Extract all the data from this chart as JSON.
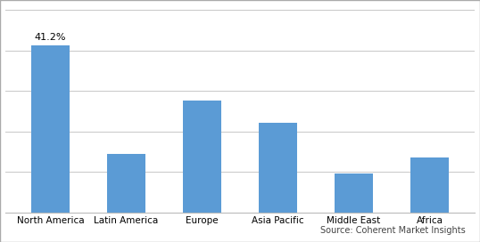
{
  "categories": [
    "North America",
    "Latin America",
    "Europe",
    "Asia Pacific",
    "Middle East",
    "Africa"
  ],
  "values": [
    41.2,
    14.5,
    27.5,
    22.0,
    9.5,
    13.5
  ],
  "bar_color": "#5b9bd5",
  "annotation_label": "41.2%",
  "annotation_bar_index": 0,
  "ylim": [
    0,
    50
  ],
  "yticks": [
    0,
    10,
    20,
    30,
    40,
    50
  ],
  "source_text": "Source: Coherent Market Insights",
  "background_color": "#ffffff",
  "grid_color": "#c8c8c8",
  "bar_width": 0.5,
  "tick_fontsize": 7.5,
  "annotation_fontsize": 8,
  "source_fontsize": 7,
  "border_color": "#aaaaaa"
}
